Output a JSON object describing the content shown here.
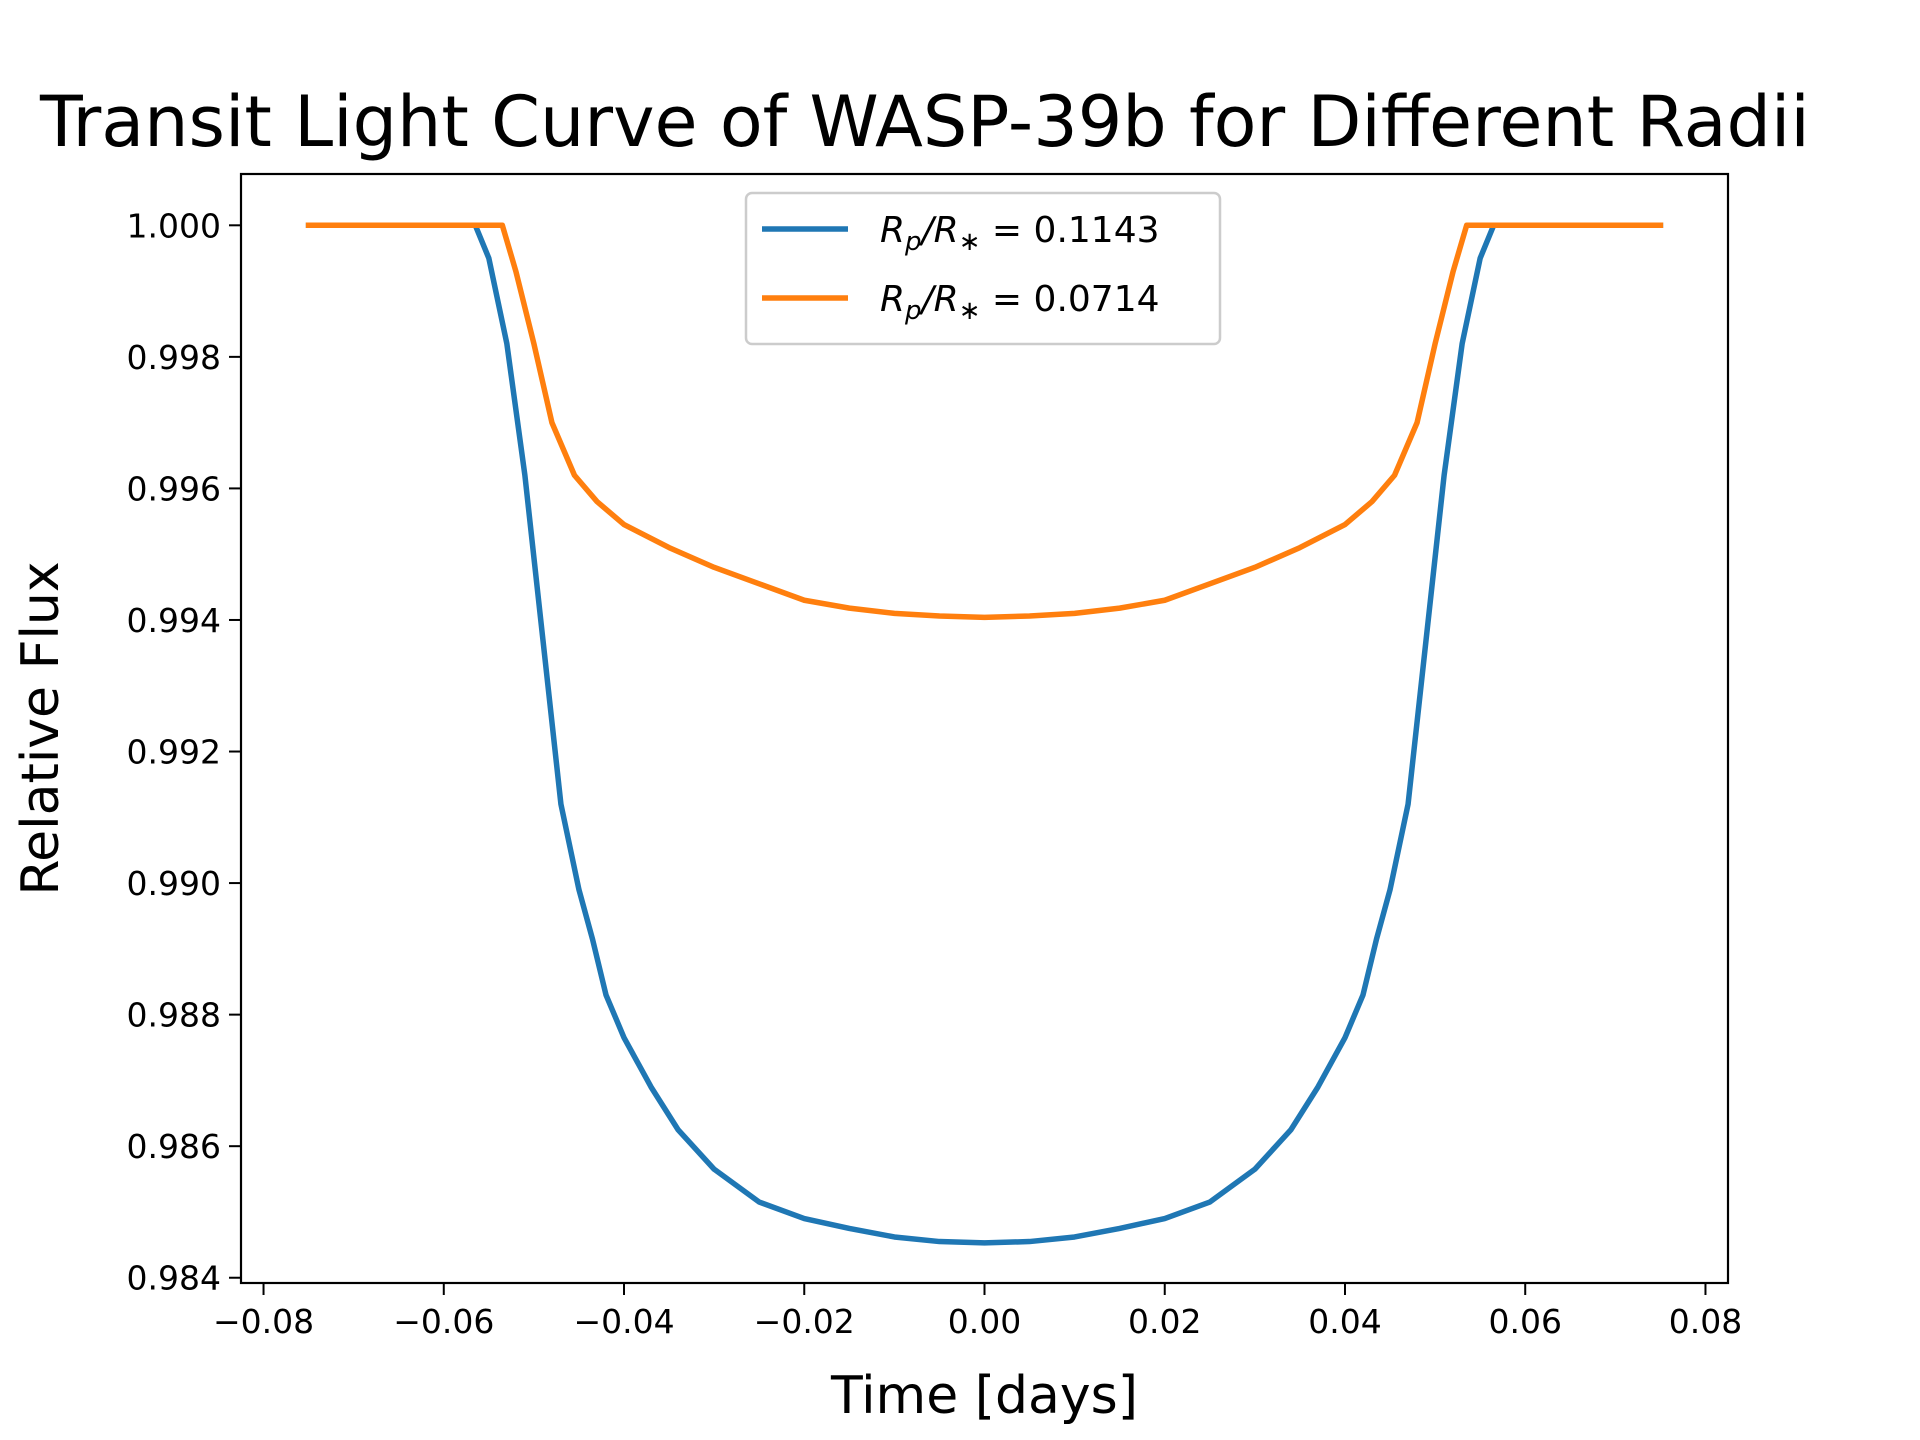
{
  "chart_data": {
    "type": "line",
    "title": "Transit Light Curve of WASP-39b for Different Radii",
    "xlabel": "Time [days]",
    "ylabel": "Relative Flux",
    "xlim": [
      -0.0825,
      0.0825
    ],
    "ylim": [
      0.98392,
      1.00078
    ],
    "x_ticks": [
      -0.08,
      -0.06,
      -0.04,
      -0.02,
      0.0,
      0.02,
      0.04,
      0.06,
      0.08
    ],
    "x_tick_labels": [
      "−0.08",
      "−0.06",
      "−0.04",
      "−0.02",
      "0.00",
      "0.02",
      "0.04",
      "0.06",
      "0.08"
    ],
    "y_ticks": [
      0.984,
      0.986,
      0.988,
      0.99,
      0.992,
      0.994,
      0.996,
      0.998,
      1.0
    ],
    "y_tick_labels": [
      "0.984",
      "0.986",
      "0.988",
      "0.990",
      "0.992",
      "0.994",
      "0.996",
      "0.998",
      "1.000"
    ],
    "grid": false,
    "legend_position": "upper center",
    "series": [
      {
        "name": "R_p/R_* = 0.1143",
        "color": "#1f77b4",
        "x": [
          -0.075,
          -0.07,
          -0.065,
          -0.06,
          -0.0565,
          -0.055,
          -0.053,
          -0.051,
          -0.049,
          -0.047,
          -0.045,
          -0.0435,
          -0.042,
          -0.04,
          -0.037,
          -0.034,
          -0.03,
          -0.025,
          -0.02,
          -0.015,
          -0.01,
          -0.005,
          0.0,
          0.005,
          0.01,
          0.015,
          0.02,
          0.025,
          0.03,
          0.034,
          0.037,
          0.04,
          0.042,
          0.0435,
          0.045,
          0.047,
          0.049,
          0.051,
          0.053,
          0.055,
          0.0565,
          0.06,
          0.065,
          0.07,
          0.075
        ],
        "y": [
          1.0,
          1.0,
          1.0,
          1.0,
          1.0,
          0.9995,
          0.9982,
          0.9962,
          0.9937,
          0.9912,
          0.9899,
          0.98915,
          0.9883,
          0.98765,
          0.9869,
          0.98625,
          0.98565,
          0.98515,
          0.9849,
          0.98475,
          0.98462,
          0.98455,
          0.98453,
          0.98455,
          0.98462,
          0.98475,
          0.9849,
          0.98515,
          0.98565,
          0.98625,
          0.9869,
          0.98765,
          0.9883,
          0.98915,
          0.9899,
          0.9912,
          0.9937,
          0.9962,
          0.9982,
          0.9995,
          1.0,
          1.0,
          1.0,
          1.0,
          1.0
        ]
      },
      {
        "name": "R_p/R_* = 0.0714",
        "color": "#ff7f0e",
        "x": [
          -0.075,
          -0.07,
          -0.065,
          -0.06,
          -0.055,
          -0.0535,
          -0.052,
          -0.05,
          -0.048,
          -0.0455,
          -0.043,
          -0.04,
          -0.035,
          -0.03,
          -0.025,
          -0.02,
          -0.015,
          -0.01,
          -0.005,
          0.0,
          0.005,
          0.01,
          0.015,
          0.02,
          0.025,
          0.03,
          0.035,
          0.04,
          0.043,
          0.0455,
          0.048,
          0.05,
          0.052,
          0.0535,
          0.055,
          0.06,
          0.065,
          0.07,
          0.075
        ],
        "y": [
          1.0,
          1.0,
          1.0,
          1.0,
          1.0,
          1.0,
          0.9993,
          0.9982,
          0.997,
          0.9962,
          0.9958,
          0.99545,
          0.9951,
          0.9948,
          0.99455,
          0.9943,
          0.99418,
          0.9941,
          0.99406,
          0.99404,
          0.99406,
          0.9941,
          0.99418,
          0.9943,
          0.99455,
          0.9948,
          0.9951,
          0.99545,
          0.9958,
          0.9962,
          0.997,
          0.9982,
          0.9993,
          1.0,
          1.0,
          1.0,
          1.0,
          1.0,
          1.0
        ]
      }
    ],
    "legend": {
      "entries": [
        {
          "prefix": "R",
          "sub1": "p",
          "mid": "/R",
          "sub2": "∗",
          "suffix": " = 0.1143",
          "color": "#1f77b4"
        },
        {
          "prefix": "R",
          "sub1": "p",
          "mid": "/R",
          "sub2": "∗",
          "suffix": " = 0.0714",
          "color": "#ff7f0e"
        }
      ]
    }
  }
}
